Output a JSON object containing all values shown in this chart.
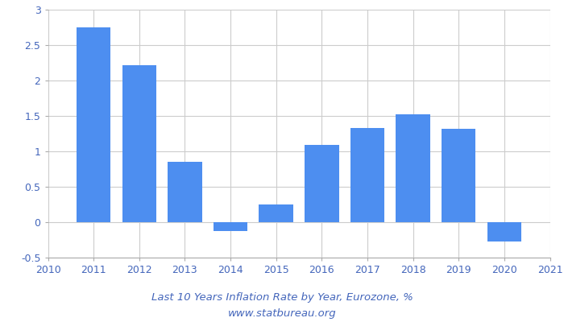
{
  "years": [
    2011,
    2012,
    2013,
    2014,
    2015,
    2016,
    2017,
    2018,
    2019,
    2020
  ],
  "values": [
    2.75,
    2.22,
    0.85,
    -0.12,
    0.25,
    1.09,
    1.33,
    1.52,
    1.32,
    -0.27
  ],
  "bar_color": "#4d8ef0",
  "xlim": [
    2010,
    2021
  ],
  "ylim": [
    -0.5,
    3.0
  ],
  "yticks": [
    -0.5,
    0.0,
    0.5,
    1.0,
    1.5,
    2.0,
    2.5,
    3.0
  ],
  "ytick_labels": [
    "-0.5",
    "0",
    "0.5",
    "1",
    "1.5",
    "2",
    "2.5",
    "3"
  ],
  "xticks": [
    2010,
    2011,
    2012,
    2013,
    2014,
    2015,
    2016,
    2017,
    2018,
    2019,
    2020,
    2021
  ],
  "title_line1": "Last 10 Years Inflation Rate by Year, Eurozone, %",
  "title_line2": "www.statbureau.org",
  "title_fontsize": 9.5,
  "tick_fontsize": 9,
  "tick_color": "#4466bb",
  "background_color": "#ffffff",
  "grid_color": "#cccccc",
  "bar_width": 0.75
}
